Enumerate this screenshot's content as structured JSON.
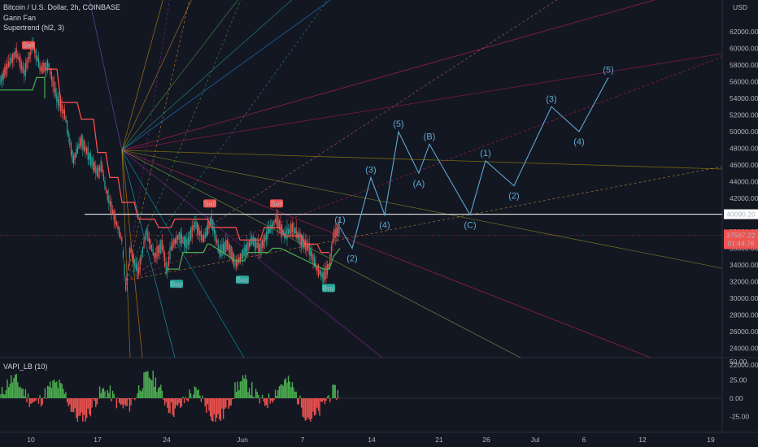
{
  "legend": {
    "symbol": "Bitcoin / U.S. Dollar, 2h, COINBASE",
    "gann": "Gann Fan",
    "supertrend": "Supertrend (hl2, 3)"
  },
  "oscillator": {
    "name": "VAPI_LB (10)"
  },
  "colors": {
    "background": "#131722",
    "up": "#26a69a",
    "down": "#ef5350",
    "supertrend_up": "#4caf50",
    "supertrend_down": "#ff5252",
    "wave": "#5fa8d3"
  },
  "chart_data": {
    "type": "line",
    "title": "Bitcoin / U.S. Dollar, 2h, COINBASE",
    "y_axis": {
      "unit": "USD",
      "ticks": [
        62000,
        60000,
        58000,
        56000,
        54000,
        52000,
        50000,
        48000,
        46000,
        44000,
        42000,
        40000,
        38000,
        36000,
        34000,
        32000,
        30000,
        28000,
        26000,
        24000,
        22000
      ],
      "range": [
        21000,
        65000
      ]
    },
    "x_axis": {
      "ticks": [
        "10",
        "17",
        "24",
        "Jun",
        "7",
        "14",
        "21",
        "26",
        "Jul",
        "6",
        "12",
        "19"
      ]
    },
    "price_path": [
      [
        0,
        56000
      ],
      [
        10,
        58000
      ],
      [
        20,
        59500
      ],
      [
        30,
        57000
      ],
      [
        40,
        60500
      ],
      [
        50,
        57500
      ],
      [
        60,
        58000
      ],
      [
        70,
        54000
      ],
      [
        80,
        52000
      ],
      [
        90,
        46500
      ],
      [
        100,
        49000
      ],
      [
        110,
        47000
      ],
      [
        120,
        45000
      ],
      [
        125,
        46000
      ],
      [
        130,
        43000
      ],
      [
        140,
        40000
      ],
      [
        150,
        37000
      ],
      [
        155,
        31000
      ],
      [
        160,
        36000
      ],
      [
        170,
        33000
      ],
      [
        180,
        38000
      ],
      [
        190,
        35000
      ],
      [
        200,
        36500
      ],
      [
        205,
        33000
      ],
      [
        210,
        36000
      ],
      [
        220,
        37500
      ],
      [
        230,
        36500
      ],
      [
        240,
        39000
      ],
      [
        250,
        37000
      ],
      [
        260,
        39500
      ],
      [
        270,
        35500
      ],
      [
        280,
        36500
      ],
      [
        290,
        34000
      ],
      [
        300,
        35500
      ],
      [
        310,
        37000
      ],
      [
        320,
        36000
      ],
      [
        330,
        38000
      ],
      [
        340,
        39500
      ],
      [
        350,
        37500
      ],
      [
        360,
        38500
      ],
      [
        370,
        37000
      ],
      [
        380,
        36000
      ],
      [
        390,
        33500
      ],
      [
        398,
        32500
      ],
      [
        405,
        34000
      ],
      [
        410,
        37500
      ],
      [
        418,
        38500
      ]
    ],
    "current_price": "37567.22",
    "countdown": "01:44:76",
    "horizontal_level": "40090.20",
    "signals": [
      {
        "label": "Sell",
        "type": "sell"
      },
      {
        "label": "Sell",
        "type": "sell"
      },
      {
        "label": "Sell",
        "type": "sell"
      },
      {
        "label": "Buy",
        "type": "buy"
      },
      {
        "label": "Buy",
        "type": "buy"
      },
      {
        "label": "Buy",
        "type": "buy"
      }
    ],
    "wave_path": [
      [
        418,
        38500
      ],
      [
        433,
        36000
      ],
      [
        456,
        44500
      ],
      [
        473,
        40000
      ],
      [
        490,
        50000
      ],
      [
        515,
        45000
      ],
      [
        528,
        48500
      ],
      [
        578,
        40000
      ],
      [
        597,
        46500
      ],
      [
        632,
        43500
      ],
      [
        678,
        53000
      ],
      [
        712,
        50000
      ],
      [
        748,
        56500
      ]
    ],
    "wave_labels": [
      "(1)",
      "(2)",
      "(3)",
      "(4)",
      "(5)",
      "(A)",
      "(B)",
      "(C)",
      "(1)",
      "(2)",
      "(3)",
      "(4)",
      "(5)"
    ],
    "oscillator_ticks": [
      "50.00",
      "25.00",
      "0.00",
      "-25.00"
    ]
  }
}
